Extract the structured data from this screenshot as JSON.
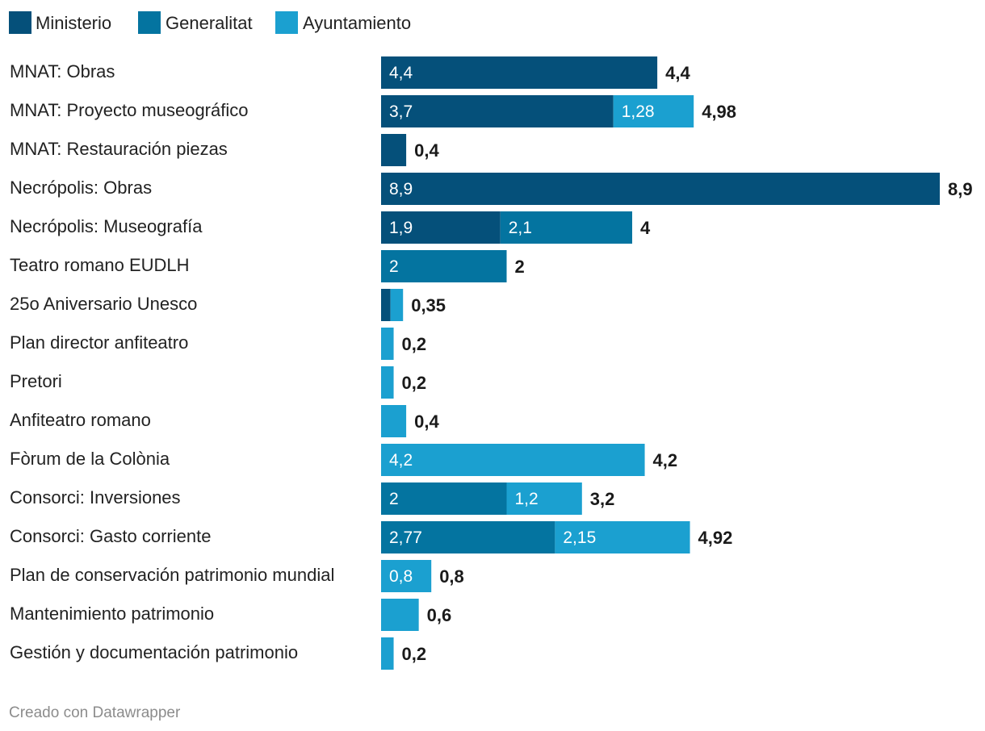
{
  "chart_data": {
    "type": "bar",
    "orientation": "horizontal",
    "stacked": true,
    "series": [
      {
        "name": "Ministerio",
        "color": "#05507a"
      },
      {
        "name": "Generalitat",
        "color": "#0474a0"
      },
      {
        "name": "Ayuntamiento",
        "color": "#1ba0d0"
      }
    ],
    "rows": [
      {
        "label": "MNAT: Obras",
        "values": [
          4.4,
          0,
          0
        ],
        "value_labels": [
          "4,4",
          "",
          ""
        ],
        "total": "4,4"
      },
      {
        "label": "MNAT: Proyecto museográfico",
        "values": [
          3.7,
          0,
          1.28
        ],
        "value_labels": [
          "3,7",
          "",
          "1,28"
        ],
        "total": "4,98"
      },
      {
        "label": "MNAT: Restauración piezas",
        "values": [
          0.4,
          0,
          0
        ],
        "value_labels": [
          "",
          "",
          ""
        ],
        "total": "0,4"
      },
      {
        "label": "Necrópolis: Obras",
        "values": [
          8.9,
          0,
          0
        ],
        "value_labels": [
          "8,9",
          "",
          ""
        ],
        "total": "8,9"
      },
      {
        "label": "Necrópolis: Museografía",
        "values": [
          1.9,
          2.1,
          0
        ],
        "value_labels": [
          "1,9",
          "2,1",
          ""
        ],
        "total": "4"
      },
      {
        "label": "Teatro romano EUDLH",
        "values": [
          0,
          2,
          0
        ],
        "value_labels": [
          "",
          "2",
          ""
        ],
        "total": "2"
      },
      {
        "label": "25o Aniversario Unesco",
        "values": [
          0.15,
          0,
          0.2
        ],
        "value_labels": [
          "",
          "",
          ""
        ],
        "total": "0,35"
      },
      {
        "label": "Plan director anfiteatro",
        "values": [
          0,
          0,
          0.2
        ],
        "value_labels": [
          "",
          "",
          ""
        ],
        "total": "0,2"
      },
      {
        "label": "Pretori",
        "values": [
          0,
          0,
          0.2
        ],
        "value_labels": [
          "",
          "",
          ""
        ],
        "total": "0,2"
      },
      {
        "label": "Anfiteatro romano",
        "values": [
          0,
          0,
          0.4
        ],
        "value_labels": [
          "",
          "",
          ""
        ],
        "total": "0,4"
      },
      {
        "label": "Fòrum de la Colònia",
        "values": [
          0,
          0,
          4.2
        ],
        "value_labels": [
          "",
          "",
          "4,2"
        ],
        "total": "4,2"
      },
      {
        "label": "Consorci: Inversiones",
        "values": [
          0,
          2,
          1.2
        ],
        "value_labels": [
          "",
          "2",
          "1,2"
        ],
        "total": "3,2"
      },
      {
        "label": "Consorci: Gasto corriente",
        "values": [
          0,
          2.77,
          2.15
        ],
        "value_labels": [
          "",
          "2,77",
          "2,15"
        ],
        "total": "4,92"
      },
      {
        "label": "Plan de conservación patrimonio mundial",
        "values": [
          0,
          0,
          0.8
        ],
        "value_labels": [
          "",
          "",
          "0,8"
        ],
        "total": "0,8"
      },
      {
        "label": "Mantenimiento patrimonio",
        "values": [
          0,
          0,
          0.6
        ],
        "value_labels": [
          "",
          "",
          ""
        ],
        "total": "0,6"
      },
      {
        "label": "Gestión y documentación patrimonio",
        "values": [
          0,
          0,
          0.2
        ],
        "value_labels": [
          "",
          "",
          ""
        ],
        "total": "0,2"
      }
    ],
    "xlim": [
      0,
      8.9
    ]
  },
  "footer": {
    "credit": "Creado con Datawrapper"
  }
}
